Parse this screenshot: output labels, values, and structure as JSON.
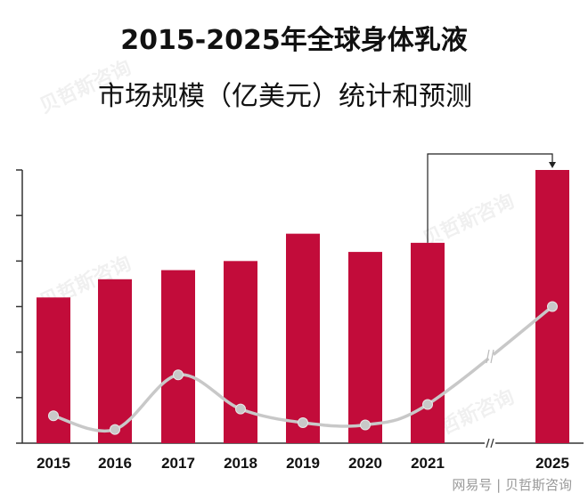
{
  "chart_data": {
    "type": "bar",
    "title": "2015-2025年全球身体乳液",
    "subtitle": "市场规模（亿美元）统计和预测",
    "categories": [
      "2015",
      "2016",
      "2017",
      "2018",
      "2019",
      "2020",
      "2021",
      "2025"
    ],
    "series": [
      {
        "type": "bar",
        "values": [
          3.2,
          3.6,
          3.8,
          4.0,
          4.6,
          4.2,
          4.4,
          6.0
        ],
        "color": "#c20c3a"
      },
      {
        "type": "line",
        "values": [
          0.6,
          0.3,
          1.5,
          0.75,
          0.45,
          0.4,
          0.85,
          3.0
        ],
        "color": "#c8c8c8"
      }
    ],
    "ylim": [
      0,
      6
    ],
    "y_tick_labels": "none",
    "axis_break_between": [
      "2021",
      "2025"
    ],
    "annotation": "arrow from 2021 bar to 2025 bar",
    "grid": false,
    "legend": "none"
  },
  "watermark": "贝哲斯咨询",
  "footer": "网易号 | 贝哲斯咨询"
}
